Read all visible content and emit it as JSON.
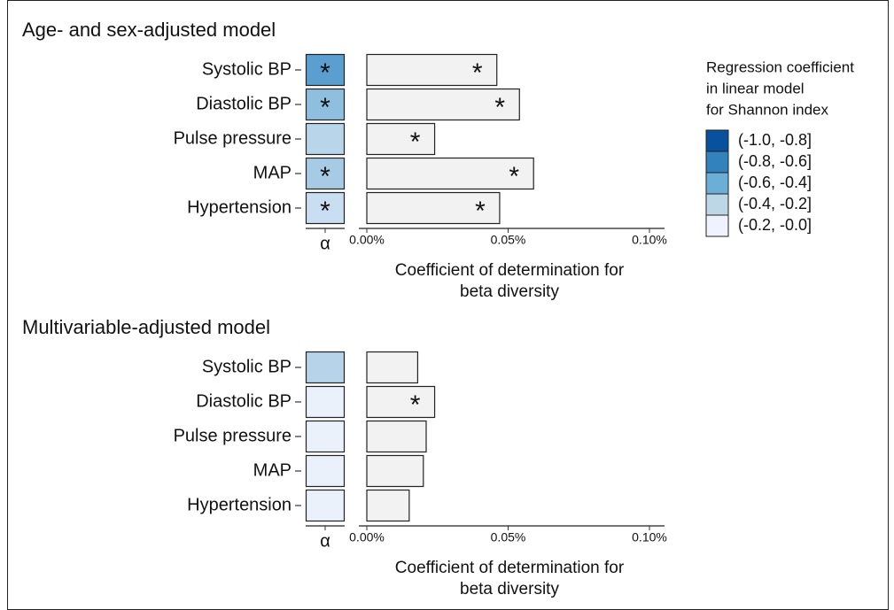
{
  "chart_data": [
    {
      "type": "bar",
      "title": "Age- and sex-adjusted model",
      "categories": [
        "Systolic BP",
        "Diastolic BP",
        "Pulse pressure",
        "MAP",
        "Hypertension"
      ],
      "values": [
        0.046,
        0.054,
        0.024,
        0.059,
        0.047
      ],
      "significance_labels": [
        "*",
        "*",
        "*",
        "*",
        "*"
      ],
      "alpha_colors": [
        "#5b9fd0",
        "#8fbfdf",
        "#b9d5ea",
        "#a8cbe5",
        "#c9def0"
      ],
      "alpha_significance_labels": [
        "*",
        "*",
        null,
        "*",
        "*"
      ],
      "alpha_label": "α",
      "xlim": [
        0,
        0.1
      ],
      "xticks": [
        {
          "value": 0,
          "label": "0.00%"
        },
        {
          "value": 0.05,
          "label": "0.05%"
        },
        {
          "value": 0.1,
          "label": "0.10%"
        }
      ],
      "xlabel": [
        "Coefficient of determination for",
        "beta diversity"
      ],
      "color": "#f2f2f2"
    },
    {
      "type": "bar",
      "title": "Multivariable-adjusted model",
      "categories": [
        "Systolic BP",
        "Diastolic BP",
        "Pulse pressure",
        "MAP",
        "Hypertension"
      ],
      "values": [
        0.018,
        0.024,
        0.021,
        0.02,
        0.015
      ],
      "significance_labels": [
        null,
        "*",
        null,
        null,
        null
      ],
      "alpha_colors": [
        "#b6d3e9",
        "#eaf1fb",
        "#eaf1fb",
        "#eaf1fb",
        "#eaf1fb"
      ],
      "alpha_significance_labels": [
        null,
        null,
        null,
        null,
        null
      ],
      "alpha_label": "α",
      "xlim": [
        0,
        0.1
      ],
      "xticks": [
        {
          "value": 0,
          "label": "0.00%"
        },
        {
          "value": 0.05,
          "label": "0.05%"
        },
        {
          "value": 0.1,
          "label": "0.10%"
        }
      ],
      "xlabel": [
        "Coefficient of determination for",
        "beta diversity"
      ],
      "color": "#f2f2f2"
    }
  ],
  "legend": {
    "title": [
      "Regression coefficient",
      "in linear model",
      "for Shannon index"
    ],
    "labels": [
      "(-1.0, -0.8]",
      "(-0.8, -0.6]",
      "(-0.6, -0.4]",
      "(-0.4, -0.2]",
      "(-0.2, -0.0]"
    ],
    "colors": [
      "#08519c",
      "#3182bd",
      "#6baed6",
      "#bdd7e7",
      "#eff3ff"
    ]
  }
}
